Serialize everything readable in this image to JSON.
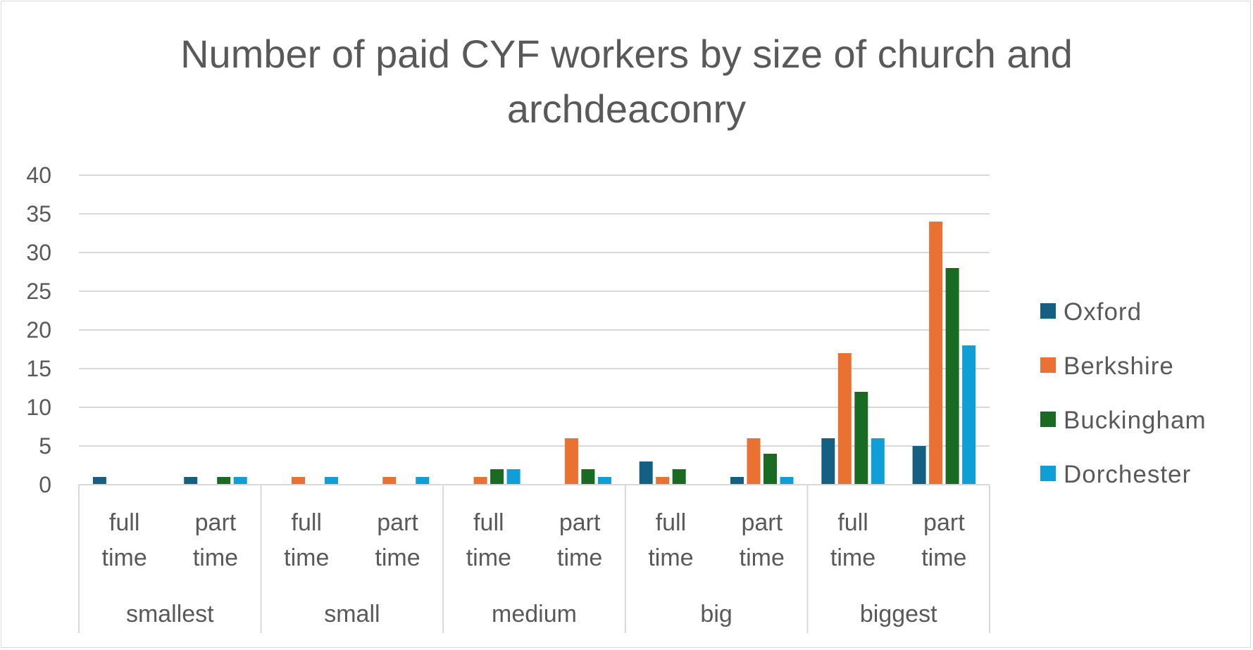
{
  "chart_data": {
    "type": "bar",
    "title_lines": [
      "Number of paid CYF workers by size of church and",
      "archdeaconry"
    ],
    "groups": [
      {
        "label": "smallest",
        "categories": [
          {
            "label": [
              "full",
              "time"
            ]
          },
          {
            "label": [
              "part",
              "time"
            ]
          }
        ]
      },
      {
        "label": "small",
        "categories": [
          {
            "label": [
              "full",
              "time"
            ]
          },
          {
            "label": [
              "part",
              "time"
            ]
          }
        ]
      },
      {
        "label": "medium",
        "categories": [
          {
            "label": [
              "full",
              "time"
            ]
          },
          {
            "label": [
              "part",
              "time"
            ]
          }
        ]
      },
      {
        "label": "big",
        "categories": [
          {
            "label": [
              "full",
              "time"
            ]
          },
          {
            "label": [
              "part",
              "time"
            ]
          }
        ]
      },
      {
        "label": "biggest",
        "categories": [
          {
            "label": [
              "full",
              "time"
            ]
          },
          {
            "label": [
              "part",
              "time"
            ]
          }
        ]
      }
    ],
    "series": [
      {
        "name": "Oxford",
        "color": "#156082",
        "values": [
          1,
          1,
          0,
          0,
          0,
          0,
          3,
          1,
          6,
          5
        ]
      },
      {
        "name": "Berkshire",
        "color": "#E97132",
        "values": [
          0,
          0,
          1,
          1,
          1,
          6,
          1,
          6,
          17,
          34
        ]
      },
      {
        "name": "Buckingham",
        "color": "#196B24",
        "values": [
          0,
          1,
          0,
          0,
          2,
          2,
          2,
          4,
          12,
          28
        ]
      },
      {
        "name": "Dorchester",
        "color": "#0F9ED5",
        "values": [
          0,
          1,
          1,
          1,
          2,
          1,
          0,
          1,
          6,
          18
        ]
      }
    ],
    "ylim": [
      0,
      40
    ],
    "yticks": [
      "0",
      "5",
      "10",
      "15",
      "20",
      "25",
      "30",
      "35",
      "40"
    ],
    "grid": true,
    "legend_position": "right"
  }
}
